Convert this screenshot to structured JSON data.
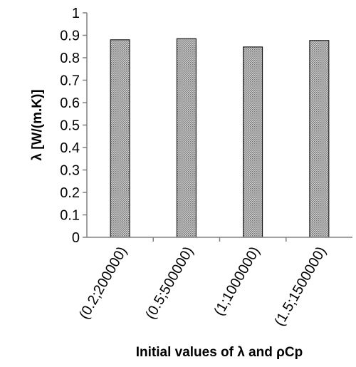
{
  "chart_data": {
    "type": "bar",
    "title": "",
    "xlabel": "Initial values of λ and ρCp",
    "ylabel": "λ [W/(m.K)]",
    "categories": [
      "(0.2;200000)",
      "(0.5;500000)",
      "(1;1000000)",
      "(1.5;1500000)"
    ],
    "values": [
      0.88,
      0.885,
      0.848,
      0.877
    ],
    "ylim": [
      0,
      1
    ],
    "yticks": [
      0,
      0.1,
      0.2,
      0.3,
      0.4,
      0.5,
      0.6,
      0.7,
      0.8,
      0.9,
      1
    ],
    "ytick_labels": [
      "0",
      "0.1",
      "0.2",
      "0.3",
      "0.4",
      "0.5",
      "0.6",
      "0.7",
      "0.8",
      "0.9",
      "1"
    ],
    "grid": false,
    "legend": "none",
    "bar_fill": "#bdbdbd",
    "bar_pattern": "dotted-hatch"
  }
}
